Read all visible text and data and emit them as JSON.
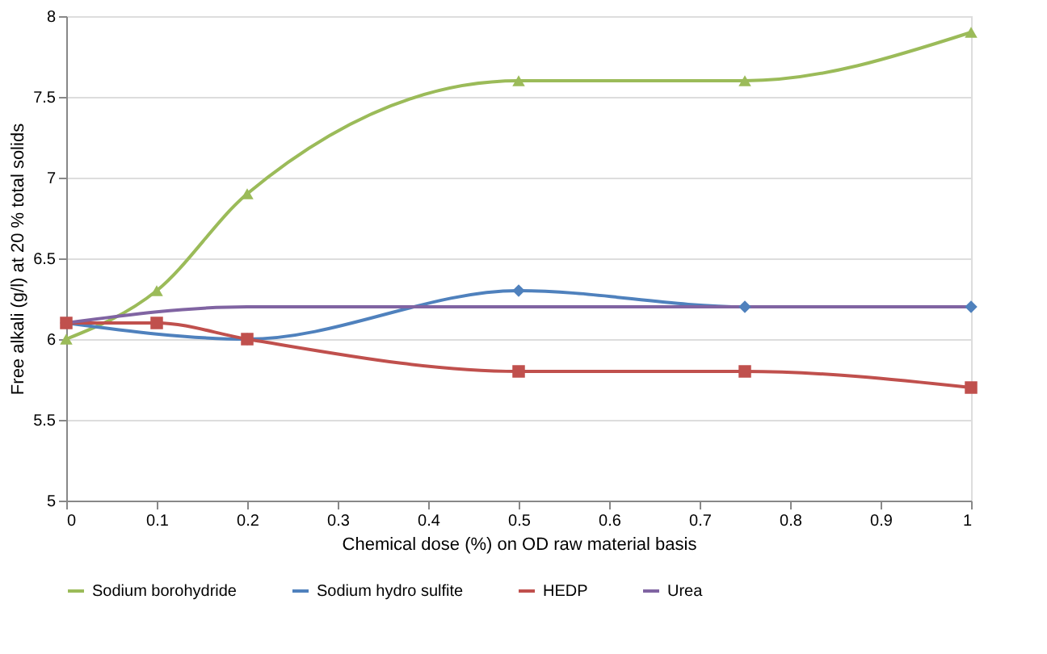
{
  "chart_data": {
    "type": "line",
    "xlabel": "Chemical dose (%) on OD raw material basis",
    "ylabel": "Free alkali (g/l) at 20 % total solids",
    "xlim": [
      0,
      1
    ],
    "xticks": [
      0,
      0.1,
      0.2,
      0.3,
      0.4,
      0.5,
      0.6,
      0.7,
      0.8,
      0.9,
      1
    ],
    "ylim": [
      5,
      8
    ],
    "yticks": [
      5,
      5.5,
      6,
      6.5,
      7,
      7.5,
      8
    ],
    "grid": "y",
    "legend": "bottom",
    "series": [
      {
        "name": "Sodium borohydride",
        "color": "#9bbb59",
        "marker": "triangle",
        "x": [
          0,
          0.1,
          0.2,
          0.5,
          0.75,
          1
        ],
        "values": [
          6.0,
          6.3,
          6.9,
          7.6,
          7.6,
          7.9
        ]
      },
      {
        "name": "Sodium hydro sulfite",
        "color": "#4f81bd",
        "marker": "diamond",
        "x": [
          0,
          0.2,
          0.5,
          0.75,
          1
        ],
        "values": [
          6.1,
          6.0,
          6.3,
          6.2,
          6.2
        ]
      },
      {
        "name": "HEDP",
        "color": "#c0504d",
        "marker": "square",
        "x": [
          0,
          0.1,
          0.2,
          0.5,
          0.75,
          1
        ],
        "values": [
          6.1,
          6.1,
          6.0,
          5.8,
          5.8,
          5.7
        ]
      },
      {
        "name": "Urea",
        "color": "#8064a2",
        "marker": "none",
        "x": [
          0,
          0.2,
          0.5,
          0.75,
          1
        ],
        "values": [
          6.1,
          6.2,
          6.2,
          6.2,
          6.2
        ]
      }
    ]
  }
}
